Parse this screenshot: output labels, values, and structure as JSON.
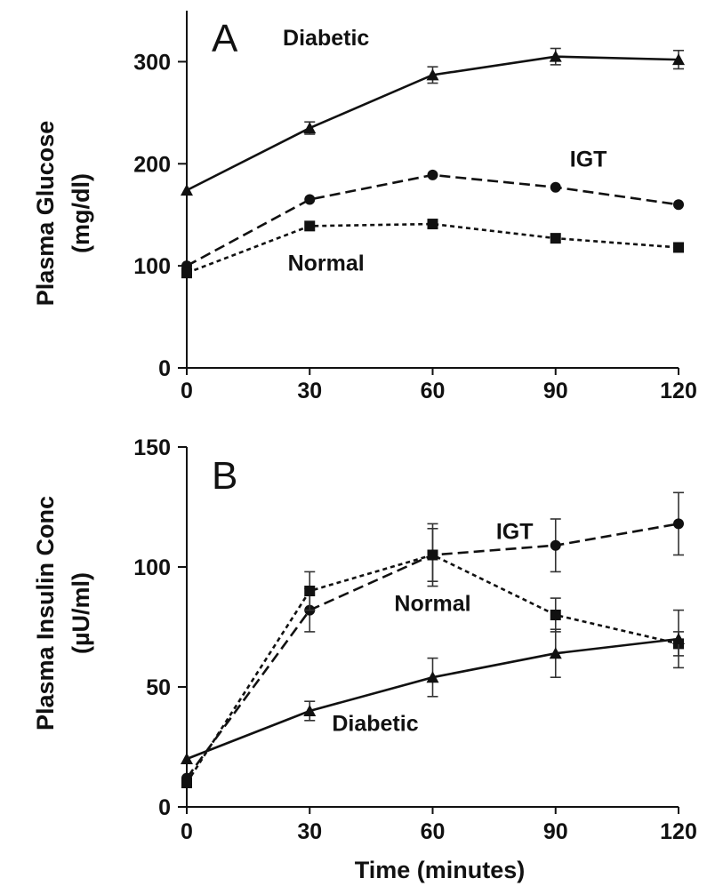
{
  "chart_data": [
    {
      "type": "line",
      "panel": "A",
      "ylabel_line1": "Plasma Glucose",
      "ylabel_line2": "(mg/dl)",
      "xlabel": "",
      "x": [
        0,
        30,
        60,
        90,
        120
      ],
      "xlim": [
        0,
        120
      ],
      "ylim": [
        0,
        350
      ],
      "xticks": [
        "0",
        "30",
        "60",
        "90",
        "120"
      ],
      "yticks": [
        {
          "value": 0,
          "label": "0"
        },
        {
          "value": 100,
          "label": "100"
        },
        {
          "value": 200,
          "label": "200"
        },
        {
          "value": 300,
          "label": "300"
        }
      ],
      "series": [
        {
          "name": "Diabetic",
          "marker": "triangle",
          "dash": "solid",
          "values": [
            174,
            235,
            287,
            305,
            302
          ],
          "errors": [
            0,
            6,
            8,
            8,
            9
          ],
          "label_at": [
            34,
            324
          ]
        },
        {
          "name": "IGT",
          "marker": "circle",
          "dash": "dashed",
          "values": [
            100,
            165,
            189,
            177,
            160
          ],
          "errors": [
            0,
            0,
            0,
            0,
            0
          ],
          "label_at": [
            98,
            205
          ]
        },
        {
          "name": "Normal",
          "marker": "square",
          "dash": "dotted",
          "values": [
            93,
            139,
            141,
            127,
            118
          ],
          "errors": [
            0,
            0,
            0,
            0,
            0
          ],
          "label_at": [
            34,
            103
          ]
        }
      ]
    },
    {
      "type": "line",
      "panel": "B",
      "ylabel_line1": "Plasma Insulin Conc",
      "ylabel_line2": "(µU/ml)",
      "xlabel": "Time (minutes)",
      "x": [
        0,
        30,
        60,
        90,
        120
      ],
      "xlim": [
        0,
        120
      ],
      "ylim": [
        0,
        150
      ],
      "xticks": [
        "0",
        "30",
        "60",
        "90",
        "120"
      ],
      "yticks": [
        {
          "value": 0,
          "label": "0"
        },
        {
          "value": 50,
          "label": "50"
        },
        {
          "value": 100,
          "label": "100"
        },
        {
          "value": 150,
          "label": "150"
        }
      ],
      "series": [
        {
          "name": "IGT",
          "marker": "circle",
          "dash": "dashed",
          "values": [
            12,
            82,
            105,
            109,
            118
          ],
          "errors": [
            0,
            9,
            13,
            11,
            13
          ],
          "label_at": [
            80,
            115
          ]
        },
        {
          "name": "Normal",
          "marker": "square",
          "dash": "dotted",
          "values": [
            10,
            90,
            105,
            80,
            68
          ],
          "errors": [
            0,
            8,
            11,
            7,
            5
          ],
          "label_at": [
            60,
            85
          ]
        },
        {
          "name": "Diabetic",
          "marker": "triangle",
          "dash": "solid",
          "values": [
            20,
            40,
            54,
            64,
            70
          ],
          "errors": [
            0,
            4,
            8,
            10,
            12
          ],
          "label_at": [
            46,
            35
          ]
        }
      ]
    }
  ]
}
